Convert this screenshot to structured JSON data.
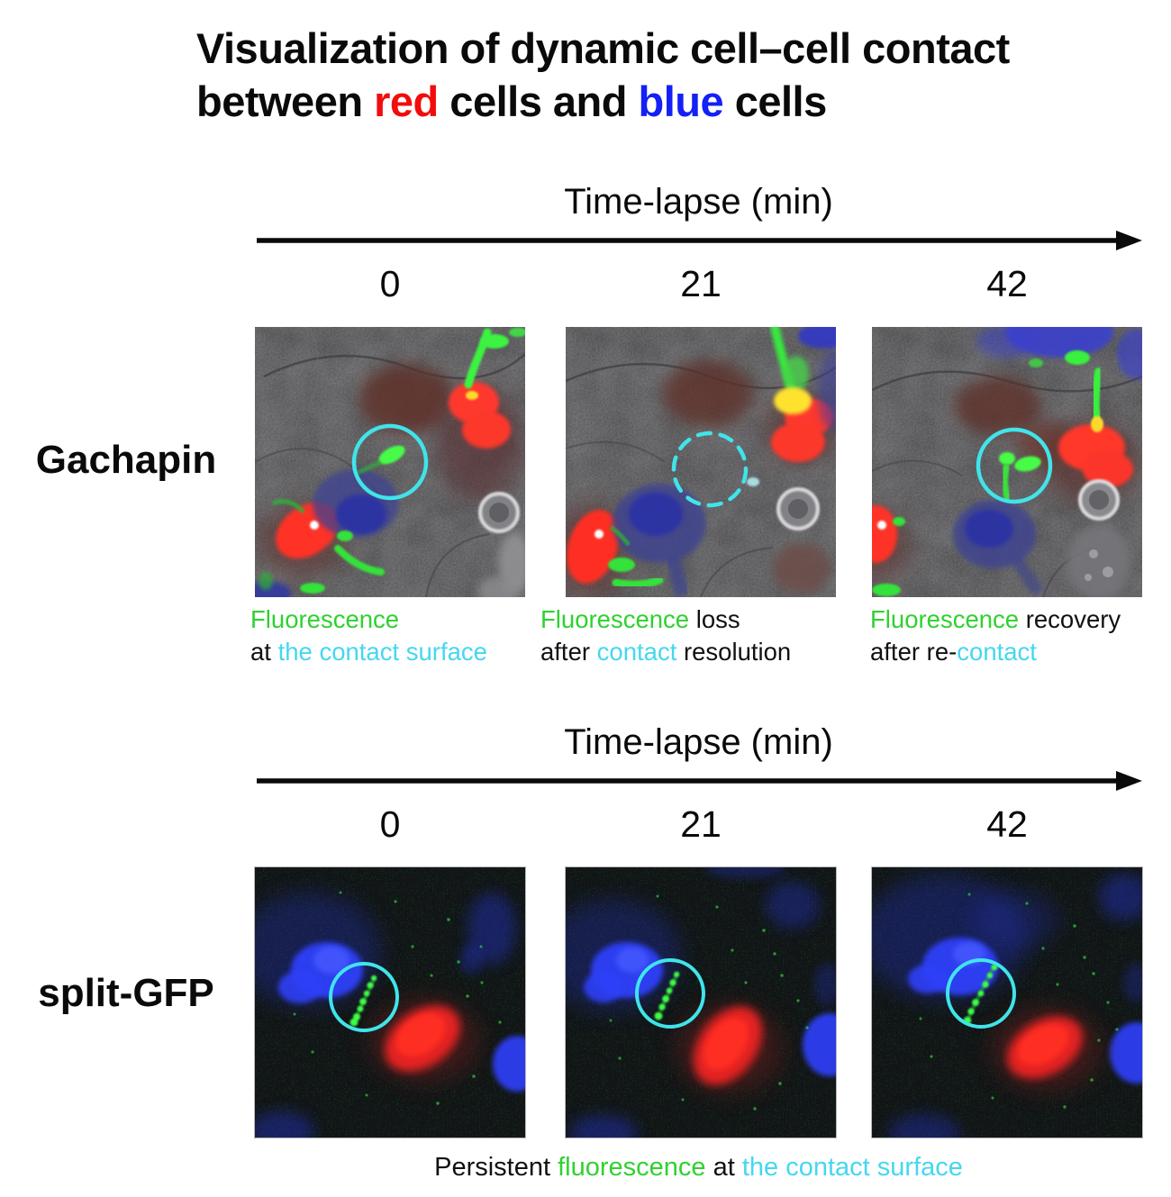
{
  "colors": {
    "black": "#111111",
    "red": "#f20c0c",
    "blue": "#1420f5",
    "green": "#30d130",
    "cyan": "#45d7f0",
    "circle_cyan": "#40e4ea"
  },
  "title": {
    "tokens": [
      {
        "text": "Visualization of dynamic cell–cell contact"
      },
      {
        "br": true
      },
      {
        "text": "between "
      },
      {
        "text": "red",
        "color": "red"
      },
      {
        "text": " cells and "
      },
      {
        "text": "blue",
        "color": "blue"
      },
      {
        "text": " cells"
      }
    ]
  },
  "sections": [
    {
      "row_label": "Gachapin",
      "timeline_label": "Time-lapse (min)",
      "ticks": [
        "0",
        "21",
        "42"
      ],
      "panels": [
        {
          "highlight": "solid-circle"
        },
        {
          "highlight": "dashed-circle"
        },
        {
          "highlight": "solid-circle"
        }
      ],
      "captions": [
        [
          {
            "text": "Fluorescence",
            "color": "green"
          },
          {
            "br": true
          },
          {
            "text": "at ",
            "color": "black"
          },
          {
            "text": "the contact surface",
            "color": "cyan"
          }
        ],
        [
          {
            "text": "Fluorescence",
            "color": "green"
          },
          {
            "text": " loss",
            "color": "black"
          },
          {
            "br": true
          },
          {
            "text": "after ",
            "color": "black"
          },
          {
            "text": "contact",
            "color": "cyan"
          },
          {
            "text": " resolution",
            "color": "black"
          }
        ],
        [
          {
            "text": "Fluorescence",
            "color": "green"
          },
          {
            "text": " recovery",
            "color": "black"
          },
          {
            "br": true
          },
          {
            "text": "after re-",
            "color": "black"
          },
          {
            "text": "contact",
            "color": "cyan"
          }
        ]
      ]
    },
    {
      "row_label": "split-GFP",
      "timeline_label": "Time-lapse (min)",
      "ticks": [
        "0",
        "21",
        "42"
      ],
      "panels": [
        {
          "highlight": "solid-circle"
        },
        {
          "highlight": "solid-circle"
        },
        {
          "highlight": "solid-circle"
        }
      ],
      "footer_caption": [
        {
          "text": "Persistent ",
          "color": "black"
        },
        {
          "text": "fluorescence",
          "color": "green"
        },
        {
          "text": " at ",
          "color": "black"
        },
        {
          "text": "the contact surface",
          "color": "cyan"
        }
      ]
    }
  ]
}
